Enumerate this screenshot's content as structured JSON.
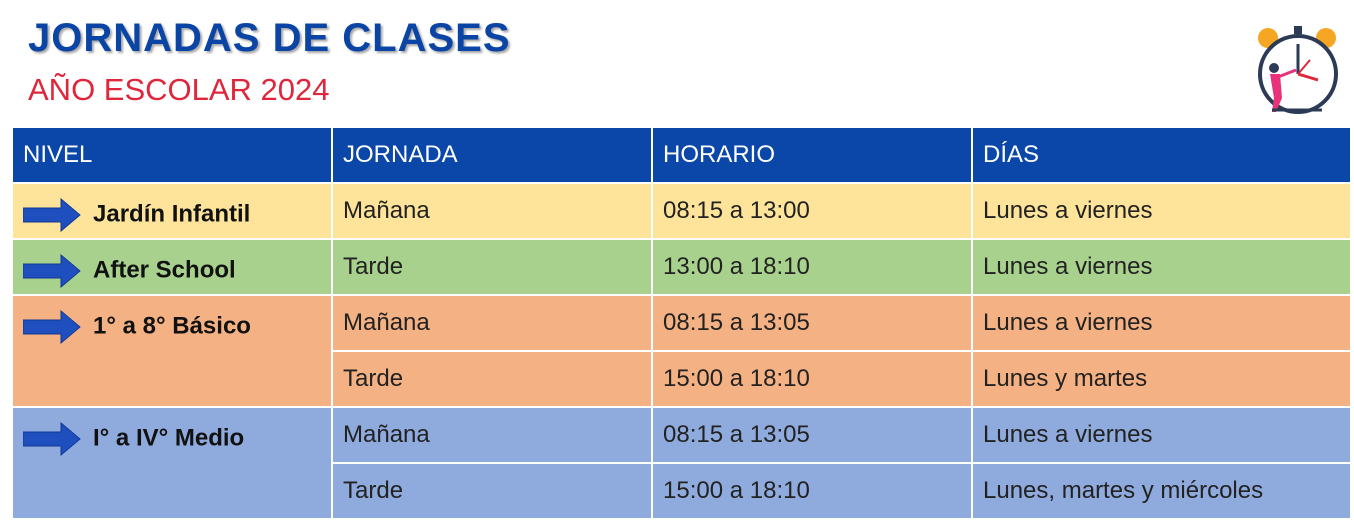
{
  "header": {
    "title": "JORNADAS DE CLASES",
    "subtitle": "AÑO ESCOLAR 2024"
  },
  "table": {
    "columns": [
      "NIVEL",
      "JORNADA",
      "HORARIO",
      "DÍAS"
    ],
    "rows": [
      {
        "nivel": "Jardín Infantil",
        "sessions": [
          [
            "Mañana",
            "08:15 a 13:00",
            "Lunes a viernes"
          ]
        ]
      },
      {
        "nivel": "After School",
        "sessions": [
          [
            "Tarde",
            "13:00 a 18:10",
            "Lunes a viernes"
          ]
        ]
      },
      {
        "nivel": "1° a 8° Básico",
        "sessions": [
          [
            "Mañana",
            "08:15 a 13:05",
            "Lunes a viernes"
          ],
          [
            "Tarde",
            "15:00 a 18:10",
            "Lunes y martes"
          ]
        ]
      },
      {
        "nivel": "I° a IV° Medio",
        "sessions": [
          [
            "Mañana",
            "08:15 a 13:05",
            "Lunes a viernes"
          ],
          [
            "Tarde",
            "15:00 a 18:10",
            "Lunes, martes y miércoles"
          ]
        ]
      }
    ]
  }
}
